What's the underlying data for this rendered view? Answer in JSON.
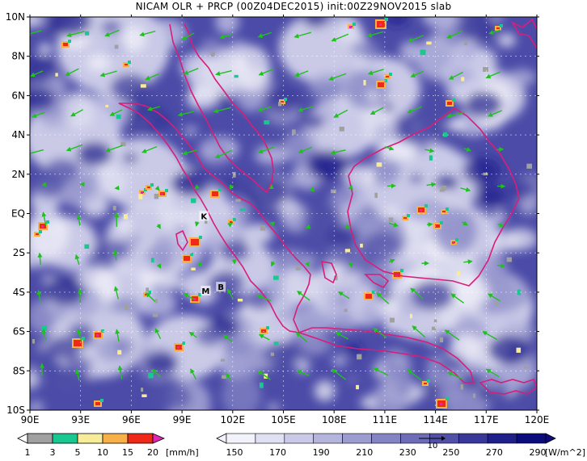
{
  "title": "NICAM OLR + PRCP (00Z04DEC2015) init:00Z29NOV2015 slab",
  "map": {
    "lon_labels": [
      "90E",
      "93E",
      "96E",
      "99E",
      "102E",
      "105E",
      "108E",
      "111E",
      "114E",
      "117E",
      "120E"
    ],
    "lat_labels": [
      "10N",
      "8N",
      "6N",
      "4N",
      "2N",
      "EQ",
      "2S",
      "4S",
      "6S",
      "8S",
      "10S"
    ],
    "place_labels": [
      {
        "text": "K",
        "lon": 100.3,
        "lat": -0.2
      },
      {
        "text": "M",
        "lon": 100.4,
        "lat": -4.0
      },
      {
        "text": "B",
        "lon": 101.3,
        "lat": -3.8
      }
    ]
  },
  "precip_bar": {
    "ticks": [
      "1",
      "3",
      "5",
      "10",
      "15",
      "20"
    ],
    "unit": "[mm/h]",
    "colors": [
      "#a0a0a0",
      "#18c890",
      "#f8ec98",
      "#f8b048",
      "#f02818",
      "#e028b8"
    ]
  },
  "olr_bar": {
    "ticks": [
      "150",
      "170",
      "190",
      "210",
      "230",
      "250",
      "270",
      "290"
    ],
    "unit": "[W/m^2]",
    "colors": [
      "#f2f2fa",
      "#e0e0f2",
      "#cacae8",
      "#b4b4dc",
      "#9c9cd0",
      "#8484c4",
      "#6c6cb8",
      "#5050a8",
      "#383898",
      "#20208a",
      "#0c0c7a"
    ]
  },
  "colors": {
    "coast": "#d81e78",
    "wind": "#20c020",
    "ocean_base": "#4c4ca8"
  },
  "ref_vector": {
    "label": "10"
  }
}
